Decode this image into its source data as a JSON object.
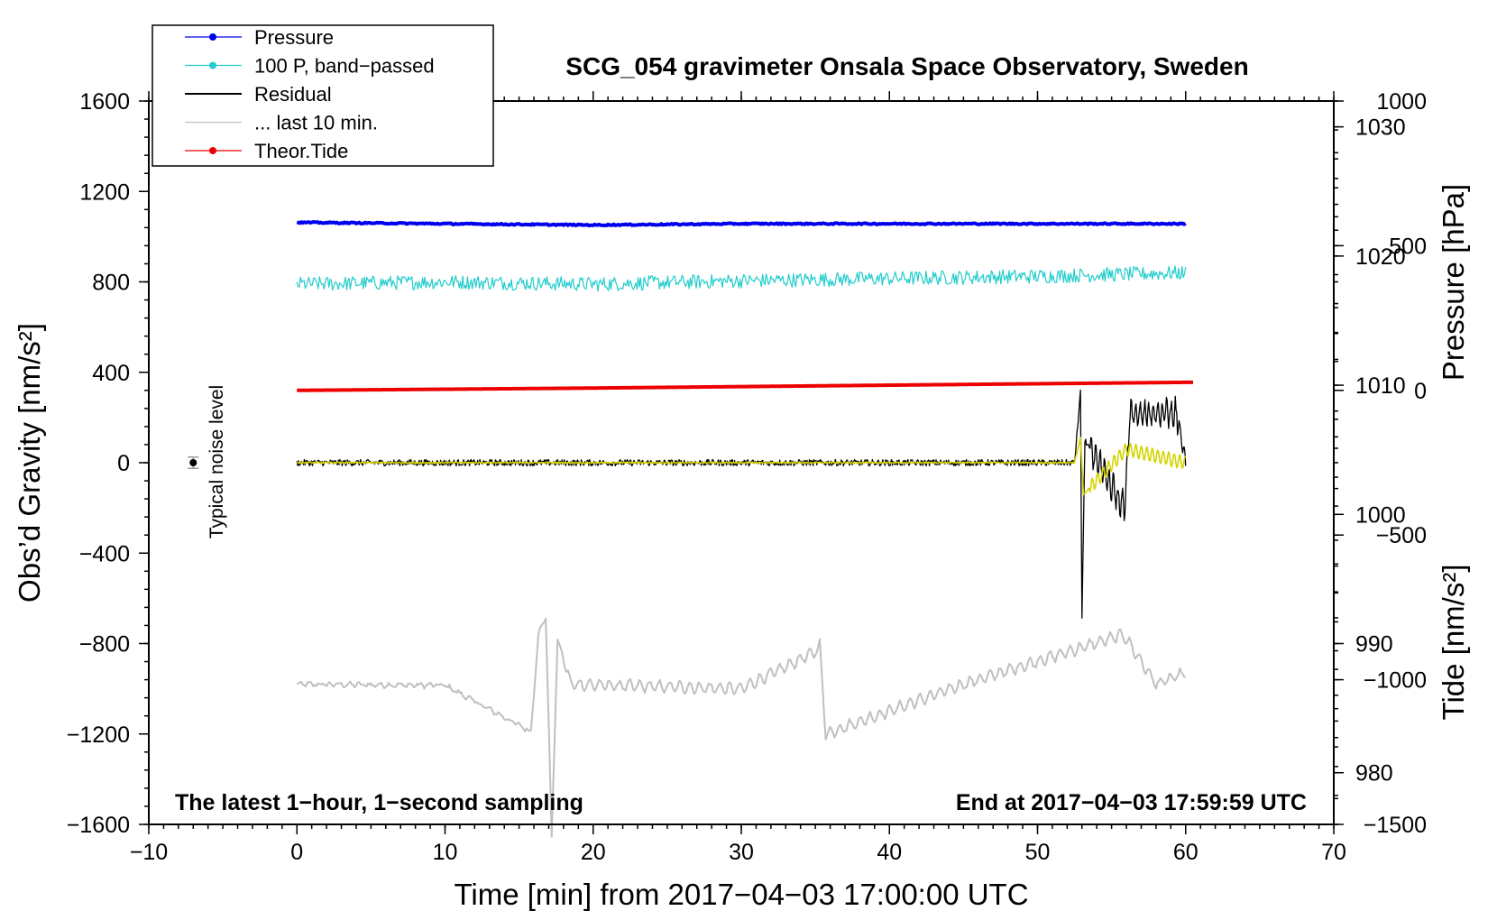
{
  "chart_data": {
    "type": "line",
    "title": "SCG_054 gravimeter Onsala Space Observatory, Sweden",
    "xlabel": "Time [min] from 2017−04−03 17:00:00 UTC",
    "ylabel_left": "Obs’d Gravity [nm/s²]",
    "ylabel_right_top": "Pressure [hPa]",
    "ylabel_right_bottom": "Tide [nm/s²]",
    "xlim": [
      -10,
      70
    ],
    "ylim_left": [
      -1600,
      1600
    ],
    "pressure_ylim": [
      976,
      1032
    ],
    "tide_ylim": [
      -1500,
      1000
    ],
    "x_ticks": [
      "−10",
      "0",
      "10",
      "20",
      "30",
      "40",
      "50",
      "60",
      "70"
    ],
    "y_left_ticks": [
      "1600",
      "1200",
      "800",
      "400",
      "0",
      "−400",
      "−800",
      "−1200",
      "−1600"
    ],
    "y_left_tick_values": [
      1600,
      1200,
      800,
      400,
      0,
      -400,
      -800,
      -1200,
      -1600
    ],
    "pressure_ticks": [
      "1030",
      "1020",
      "1010",
      "1000",
      "990",
      "980"
    ],
    "pressure_tick_values": [
      1030,
      1020,
      1010,
      1000,
      990,
      980
    ],
    "tide_ticks": [
      "1000",
      "500",
      "0",
      "−500",
      "−1000",
      "−1500"
    ],
    "tide_tick_values": [
      1000,
      500,
      0,
      -500,
      -1000,
      -1500
    ],
    "note_left": "The latest 1−hour, 1−second sampling",
    "note_right": "End at 2017−04−03 17:59:59 UTC",
    "noise_label": "Typical noise level",
    "noise_marker": {
      "x": -7,
      "y": 0,
      "err": 25
    },
    "legend": {
      "position": "top-left",
      "entries": [
        {
          "label": "Pressure",
          "color": "#0000ee",
          "marker": true
        },
        {
          "label": "100 P, band−passed",
          "color": "#22cccc",
          "marker": true
        },
        {
          "label": "Residual",
          "color": "#000000",
          "marker": false
        },
        {
          "label": "... last 10 min.",
          "color": "#c0c0c0",
          "marker": false
        },
        {
          "label": "Theor.Tide",
          "color": "#ee0000",
          "marker": true
        }
      ]
    },
    "series": [
      {
        "name": "Pressure",
        "color": "#0000ee",
        "axis": "pressure",
        "x": [
          0,
          10,
          20,
          30,
          40,
          50,
          60
        ],
        "values": [
          1022.6,
          1022.5,
          1022.4,
          1022.5,
          1022.5,
          1022.5,
          1022.5
        ]
      },
      {
        "name": "100 P, band−passed",
        "color": "#22cccc",
        "axis": "left",
        "x": [
          0,
          10,
          20,
          30,
          40,
          50,
          60
        ],
        "values": [
          790,
          800,
          790,
          805,
          815,
          825,
          840
        ]
      },
      {
        "name": "Residual",
        "color": "#000000",
        "axis": "left",
        "x": [
          0,
          52.5,
          52.9,
          53.0,
          53.2,
          55.9,
          56.2,
          59.4,
          60
        ],
        "values": [
          0,
          0,
          310,
          -680,
          100,
          -200,
          210,
          220,
          0
        ]
      },
      {
        "name": "... last 10 min.",
        "color": "#c0c0c0",
        "axis": "left",
        "x": [
          0,
          10,
          15.8,
          16.3,
          16.8,
          17.2,
          17.6,
          18.5,
          30,
          34.9,
          35.3,
          35.7,
          45,
          55.8,
          58,
          60
        ],
        "values": [
          -980,
          -985,
          -1190,
          -760,
          -680,
          -1650,
          -780,
          -980,
          -1000,
          -840,
          -810,
          -1200,
          -980,
          -760,
          -980,
          -930
        ]
      },
      {
        "name": "Theor.Tide",
        "color": "#ee0000",
        "axis": "tide",
        "x": [
          0,
          20,
          40,
          60.5
        ],
        "values": [
          0,
          8,
          18,
          28
        ]
      },
      {
        "name": "",
        "color": "#d4d400",
        "axis": "left",
        "x": [
          0,
          52.5,
          52.9,
          53.1,
          56,
          60
        ],
        "values": [
          0,
          0,
          110,
          -140,
          60,
          0
        ]
      }
    ]
  }
}
